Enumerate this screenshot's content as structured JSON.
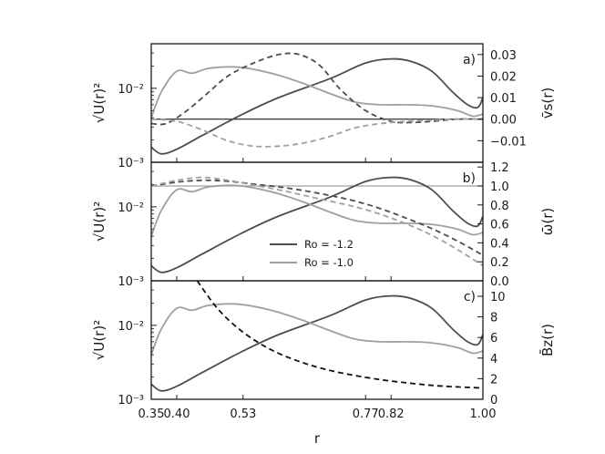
{
  "chart_data": {
    "type": "line",
    "x": [
      0.35,
      0.4,
      0.45,
      0.53,
      0.6,
      0.7,
      0.77,
      0.82,
      0.9,
      1.0
    ],
    "xlabel": "r",
    "xticks": [
      "0.35",
      "0.40",
      "0.53",
      "0.77",
      "0.82",
      "1.00"
    ],
    "xtick_values": [
      0.35,
      0.4,
      0.53,
      0.77,
      0.82,
      1.0
    ],
    "xlim": [
      0.35,
      1.0
    ],
    "colors": {
      "ro_12": "#4d4d4d",
      "ro_10": "#a0a0a0",
      "overlay": "#111111",
      "zero_line": "#555555"
    },
    "legend": {
      "placement": "lower-center of panel b",
      "entries": [
        "Ro = -1.2",
        "Ro = -1.0"
      ]
    },
    "panels": [
      {
        "tag": "a)",
        "ylabel_left": "√U(r)²",
        "ylabel_right": "v̄s(r)",
        "ylim_left": [
          0.001,
          0.04
        ],
        "yscale_left": "log",
        "yticks_left": [
          "10⁻³",
          "10⁻²"
        ],
        "ylim_right": [
          -0.02,
          0.035
        ],
        "yticks_right": [
          "−0.01",
          "0.00",
          "0.01",
          "0.02",
          "0.03"
        ],
        "ytick_values_right": [
          -0.01,
          0,
          0.01,
          0.02,
          0.03
        ],
        "series": [
          {
            "name": "Ro = -1.2",
            "axis": "left",
            "style": "solid",
            "x": [
              0.35,
              0.37,
              0.4,
              0.45,
              0.53,
              0.6,
              0.7,
              0.77,
              0.82,
              0.86,
              0.9,
              0.94,
              0.97,
              0.99,
              1.0
            ],
            "values": [
              0.0016,
              0.0013,
              0.0015,
              0.0023,
              0.0045,
              0.0075,
              0.0135,
              0.022,
              0.025,
              0.023,
              0.017,
              0.009,
              0.006,
              0.0055,
              0.0075
            ]
          },
          {
            "name": "Ro = -1.0",
            "axis": "left",
            "style": "solid",
            "x": [
              0.35,
              0.37,
              0.4,
              0.43,
              0.46,
              0.5,
              0.53,
              0.56,
              0.6,
              0.65,
              0.7,
              0.75,
              0.8,
              0.85,
              0.9,
              0.95,
              0.98,
              1.0
            ],
            "values": [
              0.004,
              0.009,
              0.017,
              0.016,
              0.0185,
              0.0195,
              0.019,
              0.0175,
              0.015,
              0.0115,
              0.0085,
              0.0065,
              0.006,
              0.006,
              0.0058,
              0.005,
              0.0042,
              0.0045
            ]
          },
          {
            "name": "Ro = -1.2",
            "axis": "right",
            "style": "dashed",
            "x": [
              0.35,
              0.38,
              0.42,
              0.46,
              0.5,
              0.55,
              0.6,
              0.64,
              0.68,
              0.72,
              0.77,
              0.82,
              0.86,
              0.9,
              0.95,
              1.0
            ],
            "values": [
              -0.002,
              -0.002,
              0.004,
              0.012,
              0.02,
              0.026,
              0.03,
              0.03,
              0.025,
              0.014,
              0.004,
              -0.001,
              -0.0015,
              -0.001,
              0.0,
              0.0
            ]
          },
          {
            "name": "Ro = -1.0",
            "axis": "right",
            "style": "dashed",
            "x": [
              0.35,
              0.4,
              0.45,
              0.5,
              0.55,
              0.6,
              0.65,
              0.7,
              0.75,
              0.8,
              0.85,
              0.9,
              0.95,
              1.0
            ],
            "values": [
              0.0,
              -0.001,
              -0.005,
              -0.01,
              -0.0125,
              -0.0125,
              -0.011,
              -0.008,
              -0.004,
              -0.002,
              -0.001,
              -0.0005,
              0.0,
              0.0
            ]
          }
        ]
      },
      {
        "tag": "b)",
        "ylabel_left": "√U(r)²",
        "ylabel_right": "ω̄(r)",
        "ylim_left": [
          0.001,
          0.04
        ],
        "yscale_left": "log",
        "yticks_left": [
          "10⁻³",
          "10⁻²"
        ],
        "ylim_right": [
          0.0,
          1.25
        ],
        "yticks_right": [
          "0.0",
          "0.2",
          "0.4",
          "0.6",
          "0.8",
          "1.0",
          "1.2"
        ],
        "ytick_values_right": [
          0.0,
          0.2,
          0.4,
          0.6,
          0.8,
          1.0,
          1.2
        ],
        "series": [
          {
            "name": "Ro = -1.2",
            "axis": "left",
            "style": "solid",
            "x": [
              0.35,
              0.37,
              0.4,
              0.45,
              0.53,
              0.6,
              0.7,
              0.77,
              0.82,
              0.86,
              0.9,
              0.94,
              0.97,
              0.99,
              1.0
            ],
            "values": [
              0.0016,
              0.0013,
              0.0015,
              0.0023,
              0.0045,
              0.0075,
              0.0135,
              0.022,
              0.025,
              0.023,
              0.017,
              0.009,
              0.006,
              0.0055,
              0.0075
            ]
          },
          {
            "name": "Ro = -1.0",
            "axis": "left",
            "style": "solid",
            "x": [
              0.35,
              0.37,
              0.4,
              0.43,
              0.46,
              0.5,
              0.53,
              0.56,
              0.6,
              0.65,
              0.7,
              0.75,
              0.8,
              0.85,
              0.9,
              0.95,
              0.98,
              1.0
            ],
            "values": [
              0.004,
              0.009,
              0.017,
              0.016,
              0.0185,
              0.0195,
              0.019,
              0.0175,
              0.015,
              0.0115,
              0.0085,
              0.0065,
              0.006,
              0.006,
              0.0058,
              0.005,
              0.0042,
              0.0045
            ]
          },
          {
            "name": "Ro = -1.2",
            "axis": "right",
            "style": "dashed",
            "x": [
              0.35,
              0.4,
              0.45,
              0.5,
              0.55,
              0.6,
              0.65,
              0.7,
              0.75,
              0.8,
              0.85,
              0.9,
              0.95,
              1.0
            ],
            "values": [
              1.0,
              1.04,
              1.06,
              1.05,
              1.02,
              0.99,
              0.95,
              0.9,
              0.84,
              0.76,
              0.66,
              0.55,
              0.42,
              0.27
            ]
          },
          {
            "name": "Ro = -1.0",
            "axis": "right",
            "style": "dashed",
            "x": [
              0.35,
              0.4,
              0.45,
              0.5,
              0.55,
              0.6,
              0.65,
              0.7,
              0.75,
              0.8,
              0.85,
              0.9,
              0.95,
              1.0
            ],
            "values": [
              1.0,
              1.06,
              1.09,
              1.06,
              1.01,
              0.96,
              0.9,
              0.84,
              0.78,
              0.7,
              0.6,
              0.48,
              0.33,
              0.16
            ]
          }
        ],
        "reference_line": {
          "axis": "right",
          "value": 1.0
        }
      },
      {
        "tag": "c)",
        "ylabel_left": "√U(r)²",
        "ylabel_right": "B̄z(r)",
        "ylim_left": [
          0.001,
          0.04
        ],
        "yscale_left": "log",
        "yticks_left": [
          "10⁻³",
          "10⁻²"
        ],
        "ylim_right": [
          0,
          11.5
        ],
        "yticks_right": [
          "0",
          "2",
          "4",
          "6",
          "8",
          "10"
        ],
        "ytick_values_right": [
          0,
          2,
          4,
          6,
          8,
          10
        ],
        "series": [
          {
            "name": "Ro = -1.2",
            "axis": "left",
            "style": "solid",
            "x": [
              0.35,
              0.37,
              0.4,
              0.45,
              0.53,
              0.6,
              0.7,
              0.77,
              0.82,
              0.86,
              0.9,
              0.94,
              0.97,
              0.99,
              1.0
            ],
            "values": [
              0.0016,
              0.0013,
              0.0015,
              0.0023,
              0.0045,
              0.0075,
              0.0135,
              0.022,
              0.025,
              0.023,
              0.017,
              0.009,
              0.006,
              0.0055,
              0.0075
            ]
          },
          {
            "name": "Ro = -1.0",
            "axis": "left",
            "style": "solid",
            "x": [
              0.35,
              0.37,
              0.4,
              0.43,
              0.46,
              0.5,
              0.53,
              0.56,
              0.6,
              0.65,
              0.7,
              0.75,
              0.8,
              0.85,
              0.9,
              0.95,
              0.98,
              1.0
            ],
            "values": [
              0.004,
              0.009,
              0.017,
              0.016,
              0.0185,
              0.0195,
              0.019,
              0.0175,
              0.015,
              0.0115,
              0.0085,
              0.0065,
              0.006,
              0.006,
              0.0058,
              0.005,
              0.0042,
              0.0045
            ]
          },
          {
            "name": "",
            "axis": "right",
            "style": "dashed",
            "color": "#111111",
            "x": [
              0.44,
              0.48,
              0.52,
              0.56,
              0.6,
              0.65,
              0.7,
              0.75,
              0.8,
              0.85,
              0.9,
              0.95,
              1.0
            ],
            "values": [
              11.5,
              8.8,
              6.9,
              5.5,
              4.45,
              3.5,
              2.8,
              2.3,
              1.9,
              1.6,
              1.35,
              1.2,
              1.1
            ]
          }
        ]
      }
    ]
  }
}
